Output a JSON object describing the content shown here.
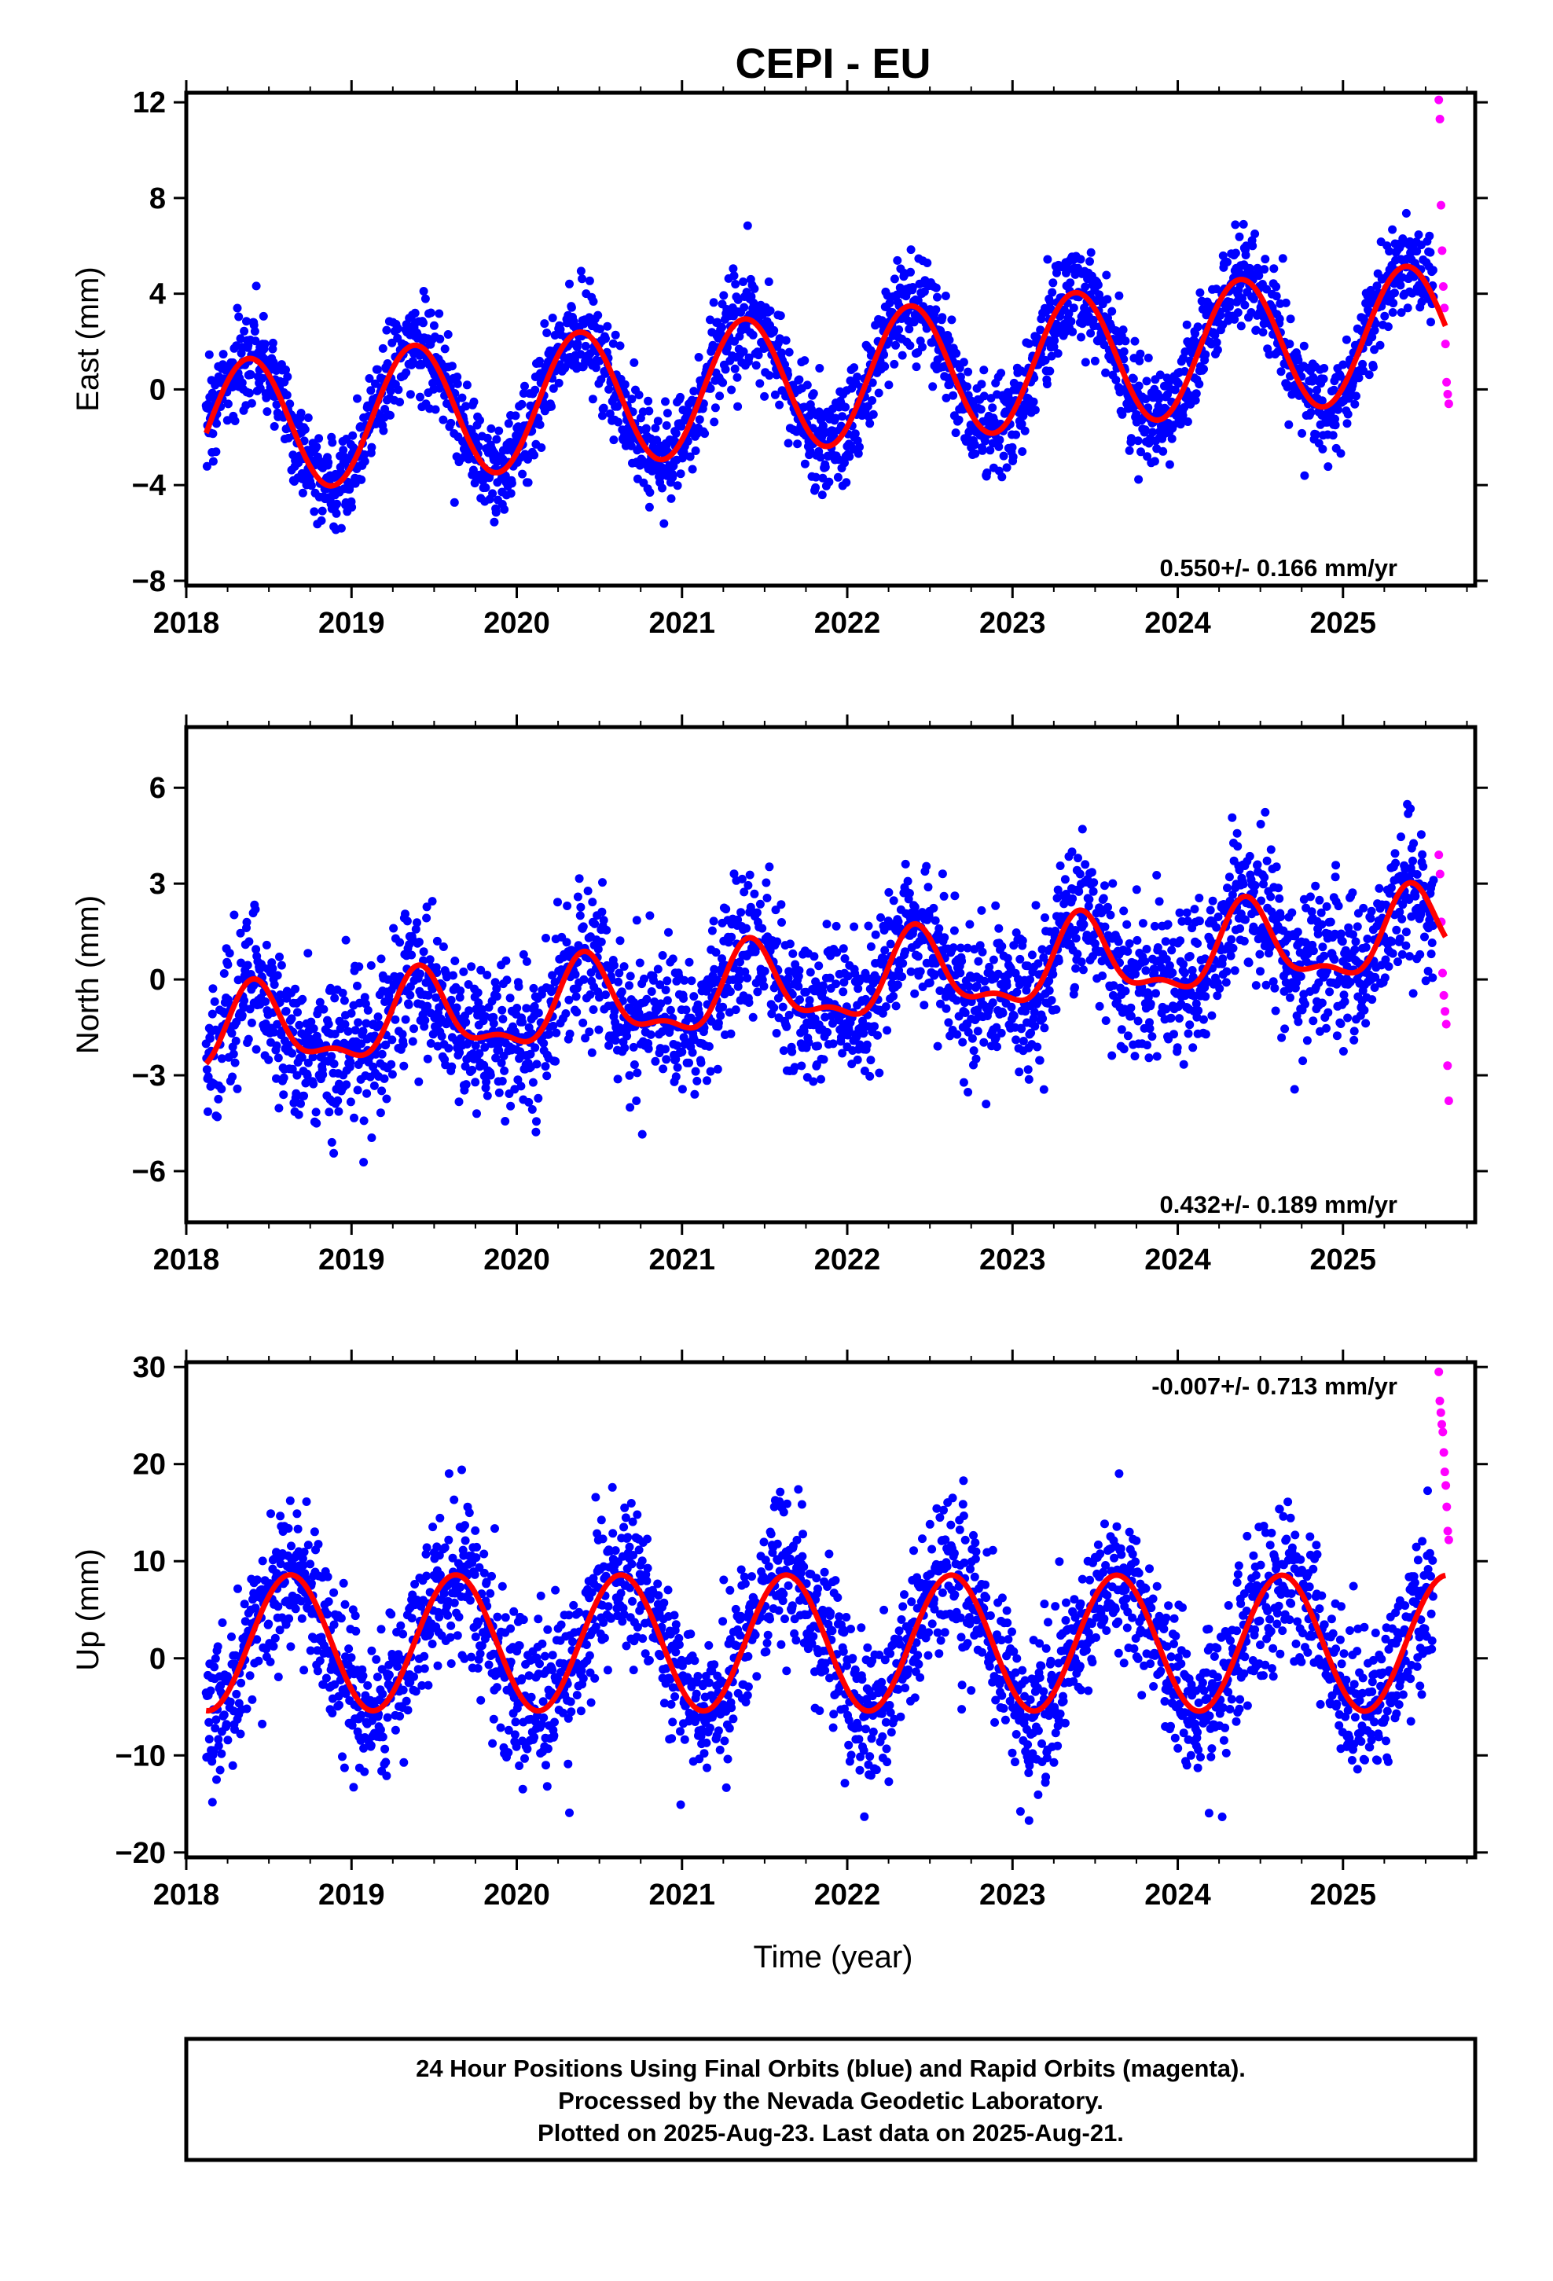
{
  "title": "CEPI - EU",
  "xlabel": "Time (year)",
  "footer": {
    "line1": "24 Hour Positions Using Final Orbits (blue) and Rapid Orbits (magenta).",
    "line2": "Processed by the Nevada Geodetic Laboratory.",
    "line3": "Plotted on 2025-Aug-23. Last data on 2025-Aug-21."
  },
  "colors": {
    "final": "#0000ff",
    "rapid": "#ff00ff",
    "model": "#ff0000"
  },
  "chart_data": [
    {
      "type": "scatter",
      "name": "east",
      "ylabel": "East (mm)",
      "rate": "0.550+/- 0.166 mm/yr",
      "xlim": [
        2018.0,
        2025.8
      ],
      "ylim": [
        -8.2,
        12.4
      ],
      "yticks": [
        -8,
        -4,
        0,
        4,
        8,
        12
      ],
      "xticks": [
        2018,
        2019,
        2020,
        2021,
        2022,
        2023,
        2024,
        2025
      ],
      "x_range": [
        2018.12,
        2025.55
      ],
      "rapid_x_range": [
        2025.58,
        2025.64
      ],
      "trend": {
        "intercept": -1.65,
        "slope": 0.55,
        "ref_year": 2018.12
      },
      "annual": {
        "amplitude": 2.8,
        "peak_phase": 0.38
      },
      "scatter_sd": 1.05,
      "rapid_values": [
        12.1,
        11.3,
        7.7,
        5.8,
        4.3,
        3.4,
        1.9,
        0.3,
        -0.2,
        -0.6
      ],
      "model_range": [
        2018.12,
        2025.62
      ]
    },
    {
      "type": "scatter",
      "name": "north",
      "ylabel": "North (mm)",
      "rate": "0.432+/- 0.189 mm/yr",
      "xlim": [
        2018.0,
        2025.8
      ],
      "ylim": [
        -7.6,
        7.9
      ],
      "yticks": [
        -6,
        -3,
        0,
        3,
        6
      ],
      "xticks": [
        2018,
        2019,
        2020,
        2021,
        2022,
        2023,
        2024,
        2025
      ],
      "x_range": [
        2018.12,
        2025.55
      ],
      "rapid_x_range": [
        2025.58,
        2025.64
      ],
      "trend": {
        "intercept": -1.8,
        "slope": 0.43,
        "ref_year": 2018.12
      },
      "annual": {
        "amplitude": 1.2,
        "peak_phase": 0.42
      },
      "semiannual": {
        "amplitude": 0.5,
        "peak_phase": 0.4
      },
      "scatter_sd": 1.15,
      "rapid_values": [
        3.9,
        3.3,
        1.8,
        0.2,
        -0.5,
        -1.0,
        -1.4,
        -2.7,
        -3.8
      ],
      "model_range": [
        2018.12,
        2025.62
      ]
    },
    {
      "type": "scatter",
      "name": "up",
      "ylabel": "Up (mm)",
      "rate": "-0.007+/- 0.713 mm/yr",
      "xlim": [
        2018.0,
        2025.8
      ],
      "ylim": [
        -20.5,
        30.5
      ],
      "yticks": [
        -20,
        -10,
        0,
        10,
        20,
        30
      ],
      "xticks": [
        2018,
        2019,
        2020,
        2021,
        2022,
        2023,
        2024,
        2025
      ],
      "x_range": [
        2018.12,
        2025.55
      ],
      "rapid_x_range": [
        2025.58,
        2025.64
      ],
      "trend": {
        "intercept": 1.6,
        "slope": -0.007,
        "ref_year": 2018.12
      },
      "annual": {
        "amplitude": 7.0,
        "peak_phase": 0.63
      },
      "scatter_sd": 3.8,
      "rapid_values": [
        29.5,
        26.5,
        25.3,
        24.1,
        23.3,
        21.2,
        19.2,
        17.8,
        15.6,
        13.1,
        12.2
      ],
      "model_range": [
        2018.12,
        2025.62
      ]
    }
  ]
}
